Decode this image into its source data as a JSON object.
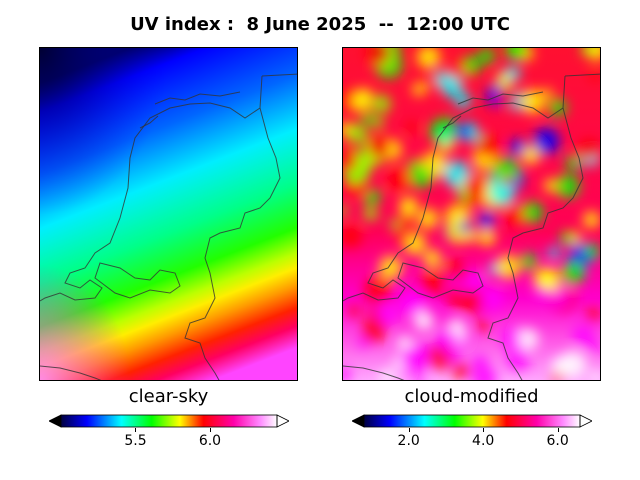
{
  "title": "UV index :  8 June 2025  --  12:00 UTC",
  "panels": [
    {
      "label": "clear-sky",
      "colorbar_ticks": [
        "5.5",
        "6.0"
      ],
      "colorbar_min_value": 5.0,
      "colorbar_max_value": 6.45,
      "tick_values": [
        5.5,
        6.0
      ]
    },
    {
      "label": "cloud-modified",
      "colorbar_ticks": [
        "2.0",
        "4.0",
        "6.0"
      ],
      "colorbar_min_value": 0.8,
      "colorbar_max_value": 6.6,
      "tick_values": [
        2.0,
        4.0,
        6.0
      ]
    }
  ],
  "colors": {
    "low": "#000040",
    "blue": "#0000ff",
    "cyan": "#00ffff",
    "green": "#00ff00",
    "yellow": "#ffff00",
    "red": "#ff0000",
    "magenta": "#ff00ff",
    "white": "#ffffff"
  }
}
